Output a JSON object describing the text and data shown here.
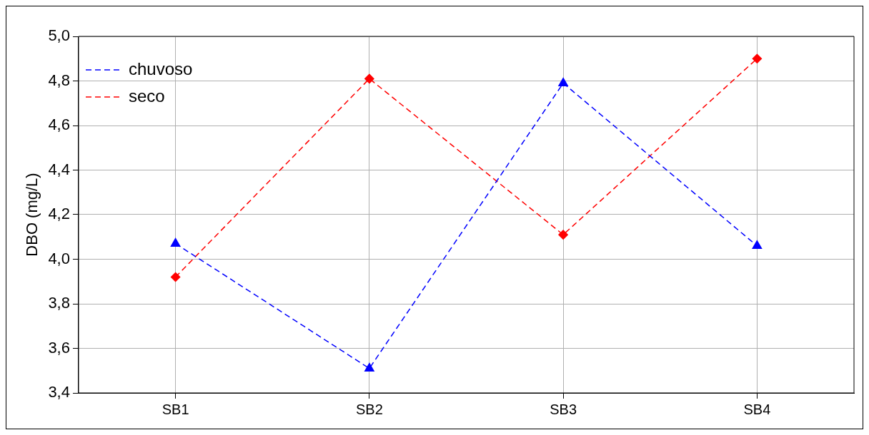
{
  "chart_data": {
    "type": "line",
    "ylabel": "DBO (mg/L)",
    "categories": [
      "SB1",
      "SB2",
      "SB3",
      "SB4"
    ],
    "series": [
      {
        "name": "chuvoso",
        "color": "#0000ff",
        "values": [
          4.07,
          3.51,
          4.79,
          4.06
        ],
        "marker": "triangle"
      },
      {
        "name": "seco",
        "color": "#ff0000",
        "values": [
          3.92,
          4.81,
          4.11,
          4.9
        ],
        "marker": "diamond"
      }
    ],
    "ylim": [
      3.4,
      5.0
    ],
    "yticks": [
      {
        "value": 3.4,
        "label": "3,4"
      },
      {
        "value": 3.6,
        "label": "3,6"
      },
      {
        "value": 3.8,
        "label": "3,8"
      },
      {
        "value": 4.0,
        "label": "4,0"
      },
      {
        "value": 4.2,
        "label": "4,2"
      },
      {
        "value": 4.4,
        "label": "4,4"
      },
      {
        "value": 4.6,
        "label": "4,6"
      },
      {
        "value": 4.8,
        "label": "4,8"
      },
      {
        "value": 5.0,
        "label": "5,0"
      }
    ],
    "grid": true,
    "legend": "top left",
    "line_style": "dashed"
  }
}
